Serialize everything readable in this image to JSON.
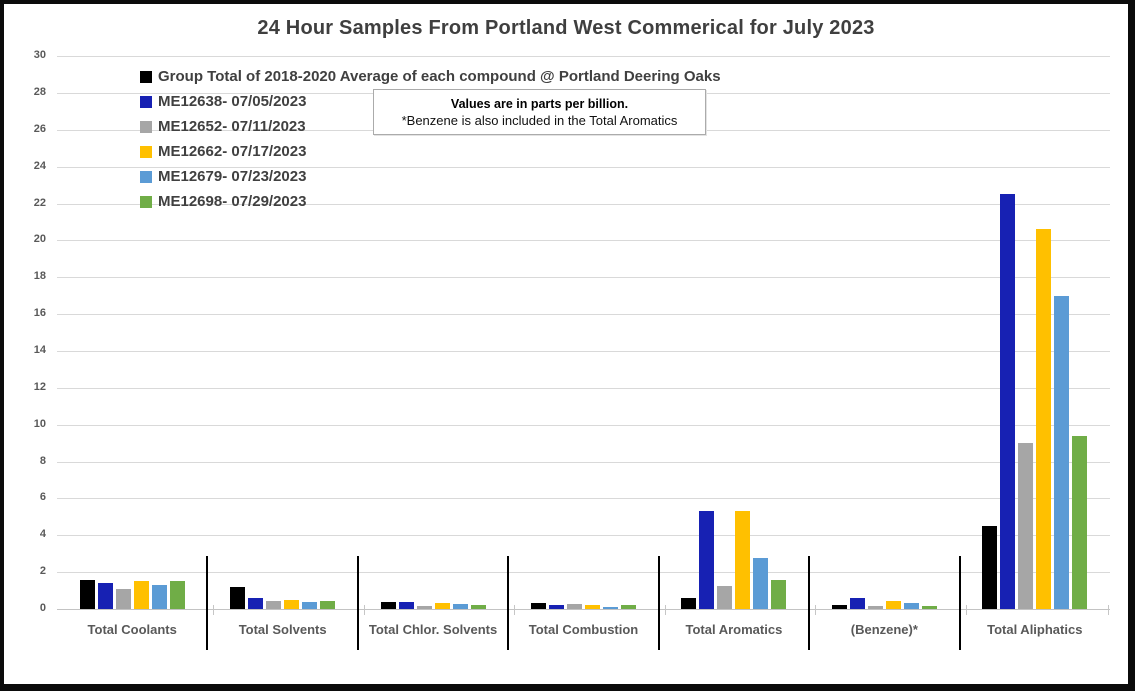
{
  "chart_data": {
    "type": "bar",
    "title": "24 Hour Samples From Portland West Commerical for July 2023",
    "note": {
      "line1": "Values are in parts per billion.",
      "line2": "*Benzene is also included in the Total Aromatics"
    },
    "categories": [
      "Total Coolants",
      "Total Solvents",
      "Total Chlor. Solvents",
      "Total Combustion",
      "Total Aromatics",
      "(Benzene)*",
      "Total Aliphatics"
    ],
    "series": [
      {
        "name": "Group Total of 2018-2020 Average of each compound @ Portland Deering Oaks",
        "color": "#000000",
        "values": [
          1.6,
          1.2,
          0.4,
          0.3,
          0.6,
          0.2,
          4.5
        ]
      },
      {
        "name": "ME12638- 07/05/2023",
        "color": "#1721B3",
        "values": [
          1.4,
          0.6,
          0.38,
          0.2,
          5.3,
          0.6,
          22.5
        ]
      },
      {
        "name": "ME12652- 07/11/2023",
        "color": "#A6A6A6",
        "values": [
          1.1,
          0.45,
          0.18,
          0.25,
          1.25,
          0.15,
          9.0
        ]
      },
      {
        "name": "ME12662- 07/17/2023",
        "color": "#FFC000",
        "values": [
          1.5,
          0.47,
          0.3,
          0.2,
          5.3,
          0.45,
          20.6
        ]
      },
      {
        "name": "ME12679- 07/23/2023",
        "color": "#5B9BD5",
        "values": [
          1.3,
          0.36,
          0.25,
          0.1,
          2.75,
          0.35,
          17.0
        ]
      },
      {
        "name": "ME12698- 07/29/2023",
        "color": "#70AD47",
        "values": [
          1.5,
          0.42,
          0.22,
          0.2,
          1.55,
          0.15,
          9.4
        ]
      }
    ],
    "ylabel": "",
    "xlabel": "",
    "ylim": [
      0,
      30
    ],
    "ytick_step": 2,
    "grid": true,
    "legend_position": "top-left-inside",
    "colors": {
      "gridline": "#D9D9D9",
      "axis_text": "#595959",
      "title_text": "#3F3F3F",
      "legend_text": "#404040",
      "frame_border": "#0B0B0B"
    }
  }
}
